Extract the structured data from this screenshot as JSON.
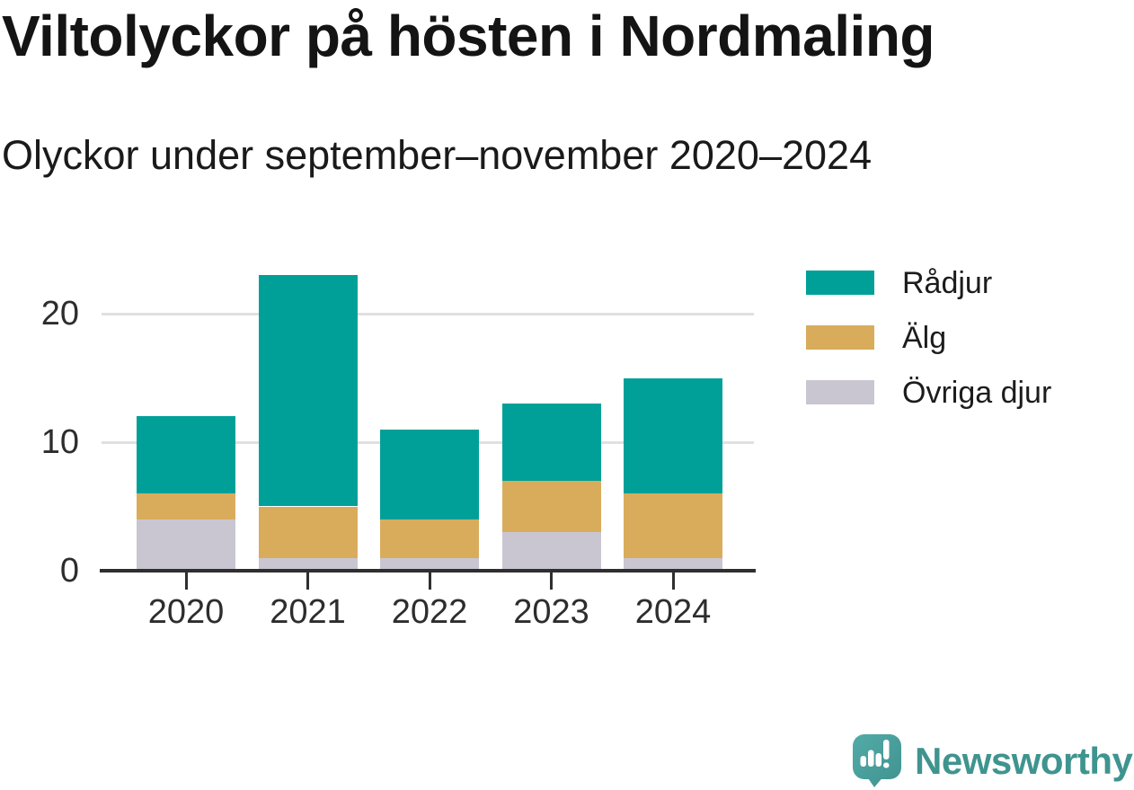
{
  "title": "Viltolyckor på hösten i Nordmaling",
  "subtitle": "Olyckor under september–november 2020–2024",
  "chart_data": {
    "type": "bar",
    "stacked": true,
    "title": "Viltolyckor på hösten i Nordmaling",
    "subtitle": "Olyckor under september–november 2020–2024",
    "categories": [
      "2020",
      "2021",
      "2022",
      "2023",
      "2024"
    ],
    "series": [
      {
        "name": "Rådjur",
        "color": "#00A099",
        "values": [
          6,
          18,
          7,
          6,
          9
        ]
      },
      {
        "name": "Älg",
        "color": "#D9AC5C",
        "values": [
          2,
          4,
          3,
          4,
          5
        ]
      },
      {
        "name": "Övriga djur",
        "color": "#C9C6D2",
        "values": [
          4,
          1,
          1,
          3,
          1
        ]
      }
    ],
    "stack_order_bottom_to_top": [
      "Övriga djur",
      "Älg",
      "Rådjur"
    ],
    "totals": [
      12,
      23,
      11,
      13,
      15
    ],
    "xlabel": "",
    "ylabel": "",
    "yticks": [
      0,
      10,
      20
    ],
    "ylim": [
      0,
      23
    ],
    "grid": true,
    "legend_position": "right"
  },
  "legend": {
    "items": [
      {
        "label": "Rådjur",
        "color": "#00A099"
      },
      {
        "label": "Älg",
        "color": "#D9AC5C"
      },
      {
        "label": "Övriga djur",
        "color": "#C9C6D2"
      }
    ]
  },
  "footer": {
    "brand": "Newsworthy"
  },
  "colors": {
    "background": "#FFFFFF",
    "axis": "#2F2F2F",
    "gridline": "#E0E0E0",
    "tick_label": "#2D2D2D",
    "title_text": "#141414",
    "brand_teal": "#3F948F",
    "logo_bubble": "#4CA5A1"
  }
}
